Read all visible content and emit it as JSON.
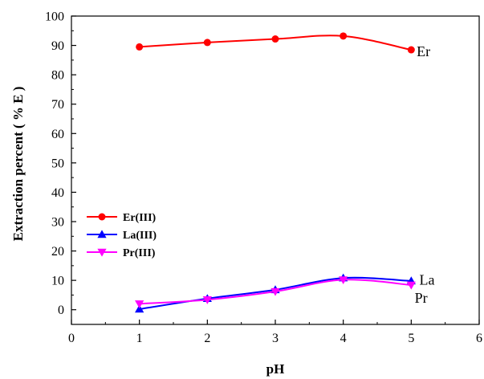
{
  "chart_data": {
    "type": "line",
    "xlabel": "pH",
    "ylabel": "Extraction percent ( % E )",
    "xlim": [
      0,
      6
    ],
    "ylim": [
      -5,
      100
    ],
    "xticks": [
      0,
      1,
      2,
      3,
      4,
      5,
      6
    ],
    "yticks": [
      0,
      10,
      20,
      30,
      40,
      50,
      60,
      70,
      80,
      90,
      100
    ],
    "legend_position": "left",
    "series": [
      {
        "name": "Er(III)",
        "color": "#ff0000",
        "marker": "circle",
        "x": [
          1,
          2,
          3,
          4,
          5
        ],
        "y": [
          89.5,
          91.0,
          92.2,
          93.2,
          88.5
        ]
      },
      {
        "name": "La(III)",
        "color": "#0000ff",
        "marker": "triangle-up",
        "x": [
          1,
          2,
          3,
          4,
          5
        ],
        "y": [
          0.2,
          3.8,
          6.8,
          10.8,
          9.8
        ]
      },
      {
        "name": "Pr(III)",
        "color": "#ff00ff",
        "marker": "triangle-down",
        "x": [
          1,
          2,
          3,
          4,
          5
        ],
        "y": [
          2.0,
          3.4,
          6.2,
          10.2,
          8.4
        ]
      }
    ],
    "annotations": [
      {
        "text": "Er",
        "x": 5.08,
        "y": 88.0
      },
      {
        "text": "La",
        "x": 5.12,
        "y": 10.2
      },
      {
        "text": "Pr",
        "x": 5.05,
        "y": 4.0
      }
    ]
  }
}
